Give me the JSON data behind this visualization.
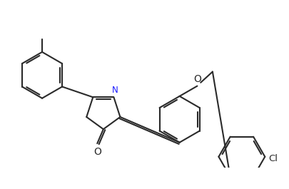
{
  "background_color": "#ffffff",
  "line_color": "#2a2a2a",
  "line_width": 1.5,
  "fig_width": 4.06,
  "fig_height": 2.65,
  "dpi": 100,
  "label_Cl": "Cl",
  "label_O_ether": "O",
  "label_N": "N",
  "label_O_carbonyl": "O",
  "font_size": 8.5
}
